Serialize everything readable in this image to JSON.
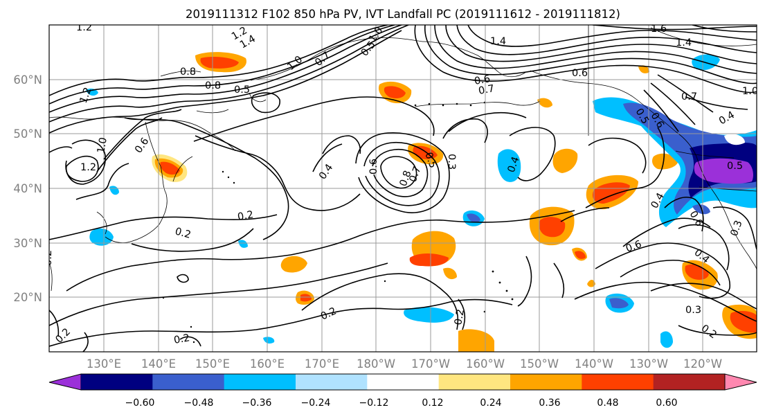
{
  "title": "2019111312 F102 850 hPa PV, IVT Landfall PC (2019111612 - 2019111812)",
  "axis_colors": {
    "tick_label": "#808080",
    "grid": "#9a9a9a",
    "contour": "#000000",
    "frame": "#000000"
  },
  "lat_labels": [
    "60°N",
    "50°N",
    "40°N",
    "30°N",
    "20°N"
  ],
  "lon_labels": [
    "130°E",
    "140°E",
    "150°E",
    "160°E",
    "170°E",
    "180°W",
    "170°W",
    "160°W",
    "150°W",
    "140°W",
    "130°W",
    "120°W"
  ],
  "contour_labels": [
    "1.2",
    "1.2",
    "1.4",
    "1.0",
    "0.7",
    "0.5",
    "1.4",
    "1.0",
    "0.8",
    "0.8",
    "0.5",
    "0.6",
    "0.7",
    "0.6",
    "1.6",
    "1.4",
    "1.0",
    "0.7",
    "1.2",
    "1.0",
    "0.6",
    "1.2",
    "0.4",
    "0.5",
    "0.8",
    "0.7",
    "0.6",
    "0.3",
    "0.4",
    "0.2",
    "0.2",
    "0.4",
    "0.6",
    "0.5",
    "0.4",
    "0.6",
    "0.4",
    "0.3",
    "0.3",
    "0.2",
    "0.2",
    "0.2",
    "0.2",
    "0.5",
    "0.6",
    "0.2",
    "0.2"
  ],
  "colorbar": {
    "ticks": [
      "−0.60",
      "−0.48",
      "−0.36",
      "−0.24",
      "−0.12",
      "0.12",
      "0.24",
      "0.36",
      "0.48",
      "0.60"
    ],
    "colors": [
      "#9b30d9",
      "#000080",
      "#3a5fcd",
      "#00bfff",
      "#b0e2ff",
      "#ffffff",
      "#ffe680",
      "#ffa500",
      "#ff4000",
      "#b22222",
      "#ff88b0"
    ]
  },
  "chart_data": {
    "type": "heatmap",
    "title": "2019111312 F102 850 hPa PV, IVT Landfall PC (2019111612 - 2019111812)",
    "xlabel": "",
    "ylabel": "",
    "x_ticks": [
      "130°E",
      "140°E",
      "150°E",
      "160°E",
      "170°E",
      "180°W",
      "170°W",
      "160°W",
      "150°W",
      "140°W",
      "130°W",
      "120°W"
    ],
    "y_ticks": [
      "60°N",
      "50°N",
      "40°N",
      "30°N",
      "20°N"
    ],
    "x_range": [
      120,
      250
    ],
    "y_range": [
      10,
      70
    ],
    "levels": [
      -0.6,
      -0.48,
      -0.36,
      -0.24,
      -0.12,
      0.12,
      0.24,
      0.36,
      0.48,
      0.6
    ],
    "colorbar_extend": "both",
    "grid": true
  }
}
